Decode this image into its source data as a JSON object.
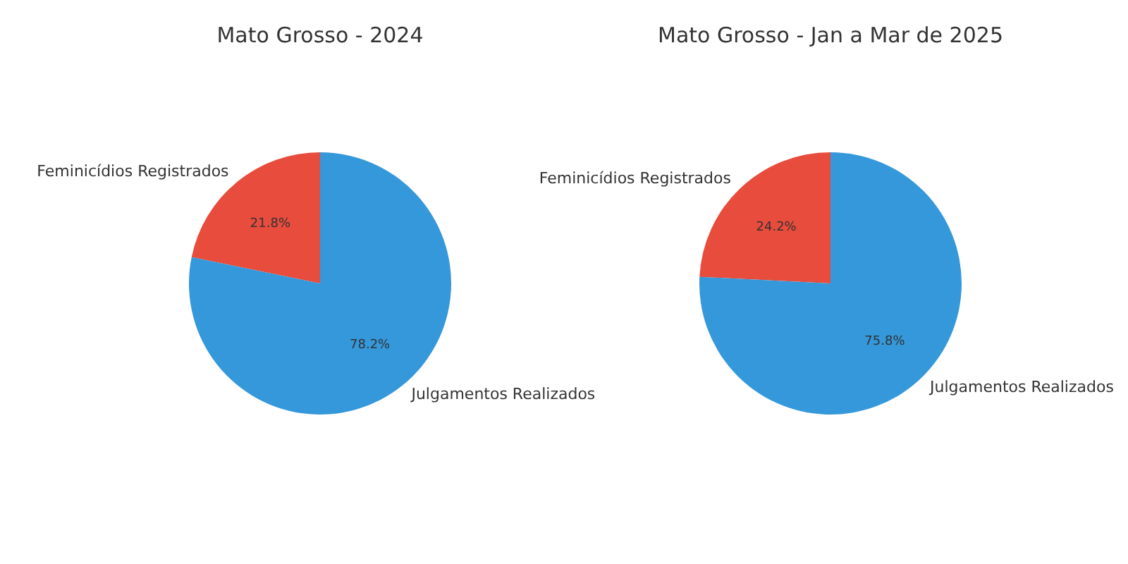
{
  "chart_data": [
    {
      "type": "pie",
      "title": "Mato Grosso - 2024",
      "categories": [
        "Feminicídios Registrados",
        "Julgamentos Realizados"
      ],
      "values": [
        21.8,
        78.2
      ],
      "colors": [
        "#e74c3c",
        "#3498db"
      ],
      "value_labels": [
        "21.8%",
        "78.2%"
      ]
    },
    {
      "type": "pie",
      "title": "Mato Grosso - Jan a Mar de 2025",
      "categories": [
        "Feminicídios Registrados",
        "Julgamentos Realizados"
      ],
      "values": [
        24.2,
        75.8
      ],
      "colors": [
        "#e74c3c",
        "#3498db"
      ],
      "value_labels": [
        "24.2%",
        "75.8%"
      ]
    }
  ]
}
